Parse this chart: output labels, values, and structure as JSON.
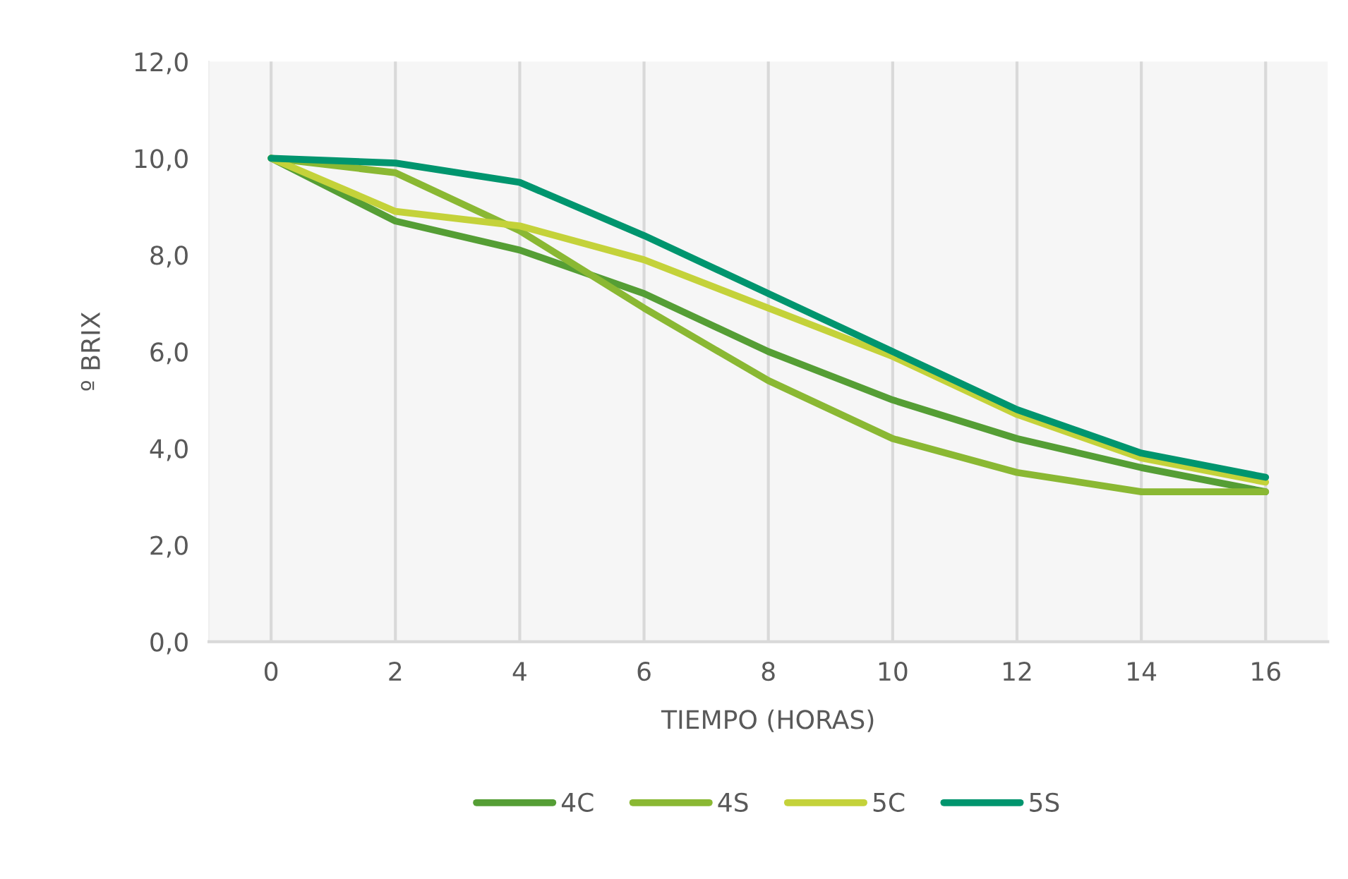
{
  "chart_data": {
    "type": "line",
    "xlabel": "TIEMPO (HORAS)",
    "ylabel": "º BRIX",
    "categories": [
      "0",
      "2",
      "4",
      "6",
      "8",
      "10",
      "12",
      "14",
      "16"
    ],
    "series": [
      {
        "name": "4C",
        "color": "#559e35",
        "values": [
          10.0,
          8.7,
          8.1,
          7.2,
          6.0,
          5.0,
          4.2,
          3.6,
          3.1
        ]
      },
      {
        "name": "4S",
        "color": "#8ab833",
        "values": [
          10.0,
          9.7,
          8.5,
          6.9,
          5.4,
          4.2,
          3.5,
          3.1,
          3.1
        ]
      },
      {
        "name": "5C",
        "color": "#c4d23a",
        "values": [
          10.0,
          8.9,
          8.6,
          7.9,
          6.9,
          5.9,
          4.7,
          3.8,
          3.3
        ]
      },
      {
        "name": "5S",
        "color": "#00956e",
        "values": [
          10.0,
          9.9,
          9.5,
          8.4,
          7.2,
          6.0,
          4.8,
          3.9,
          3.4
        ]
      }
    ],
    "ylim": [
      0,
      12
    ],
    "yticks": [
      {
        "value": 0,
        "label": "0,0"
      },
      {
        "value": 2,
        "label": "2,0"
      },
      {
        "value": 4,
        "label": "4,0"
      },
      {
        "value": 6,
        "label": "6,0"
      },
      {
        "value": 8,
        "label": "8,0"
      },
      {
        "value": 10,
        "label": "10,0"
      },
      {
        "value": 12,
        "label": "12,0"
      }
    ],
    "grid": "x",
    "legend": "bottom",
    "marker": "none",
    "line_style": "solid"
  }
}
